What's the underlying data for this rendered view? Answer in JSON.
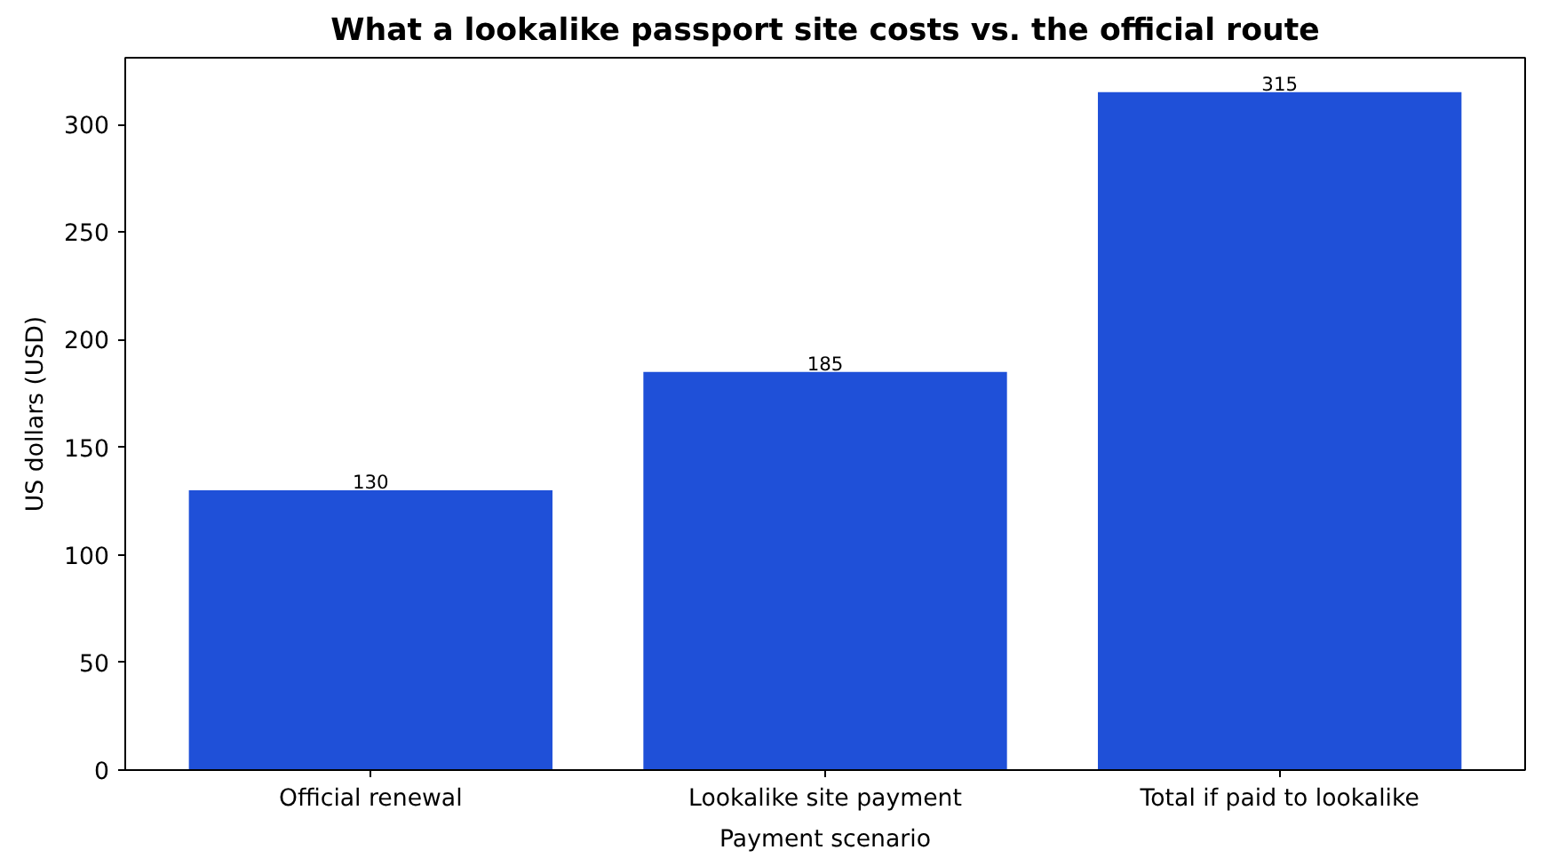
{
  "chart_data": {
    "type": "bar",
    "title": "What a lookalike passport site costs vs. the official route",
    "xlabel": "Payment scenario",
    "ylabel": "US dollars (USD)",
    "categories": [
      "Official renewal",
      "Lookalike site payment",
      "Total if paid to lookalike"
    ],
    "values": [
      130,
      185,
      315
    ],
    "color": "#1f50d8",
    "ylim": [
      0,
      331
    ],
    "yticks": [
      0,
      50,
      100,
      150,
      200,
      250,
      300
    ],
    "data_labels": true,
    "grid": false
  }
}
